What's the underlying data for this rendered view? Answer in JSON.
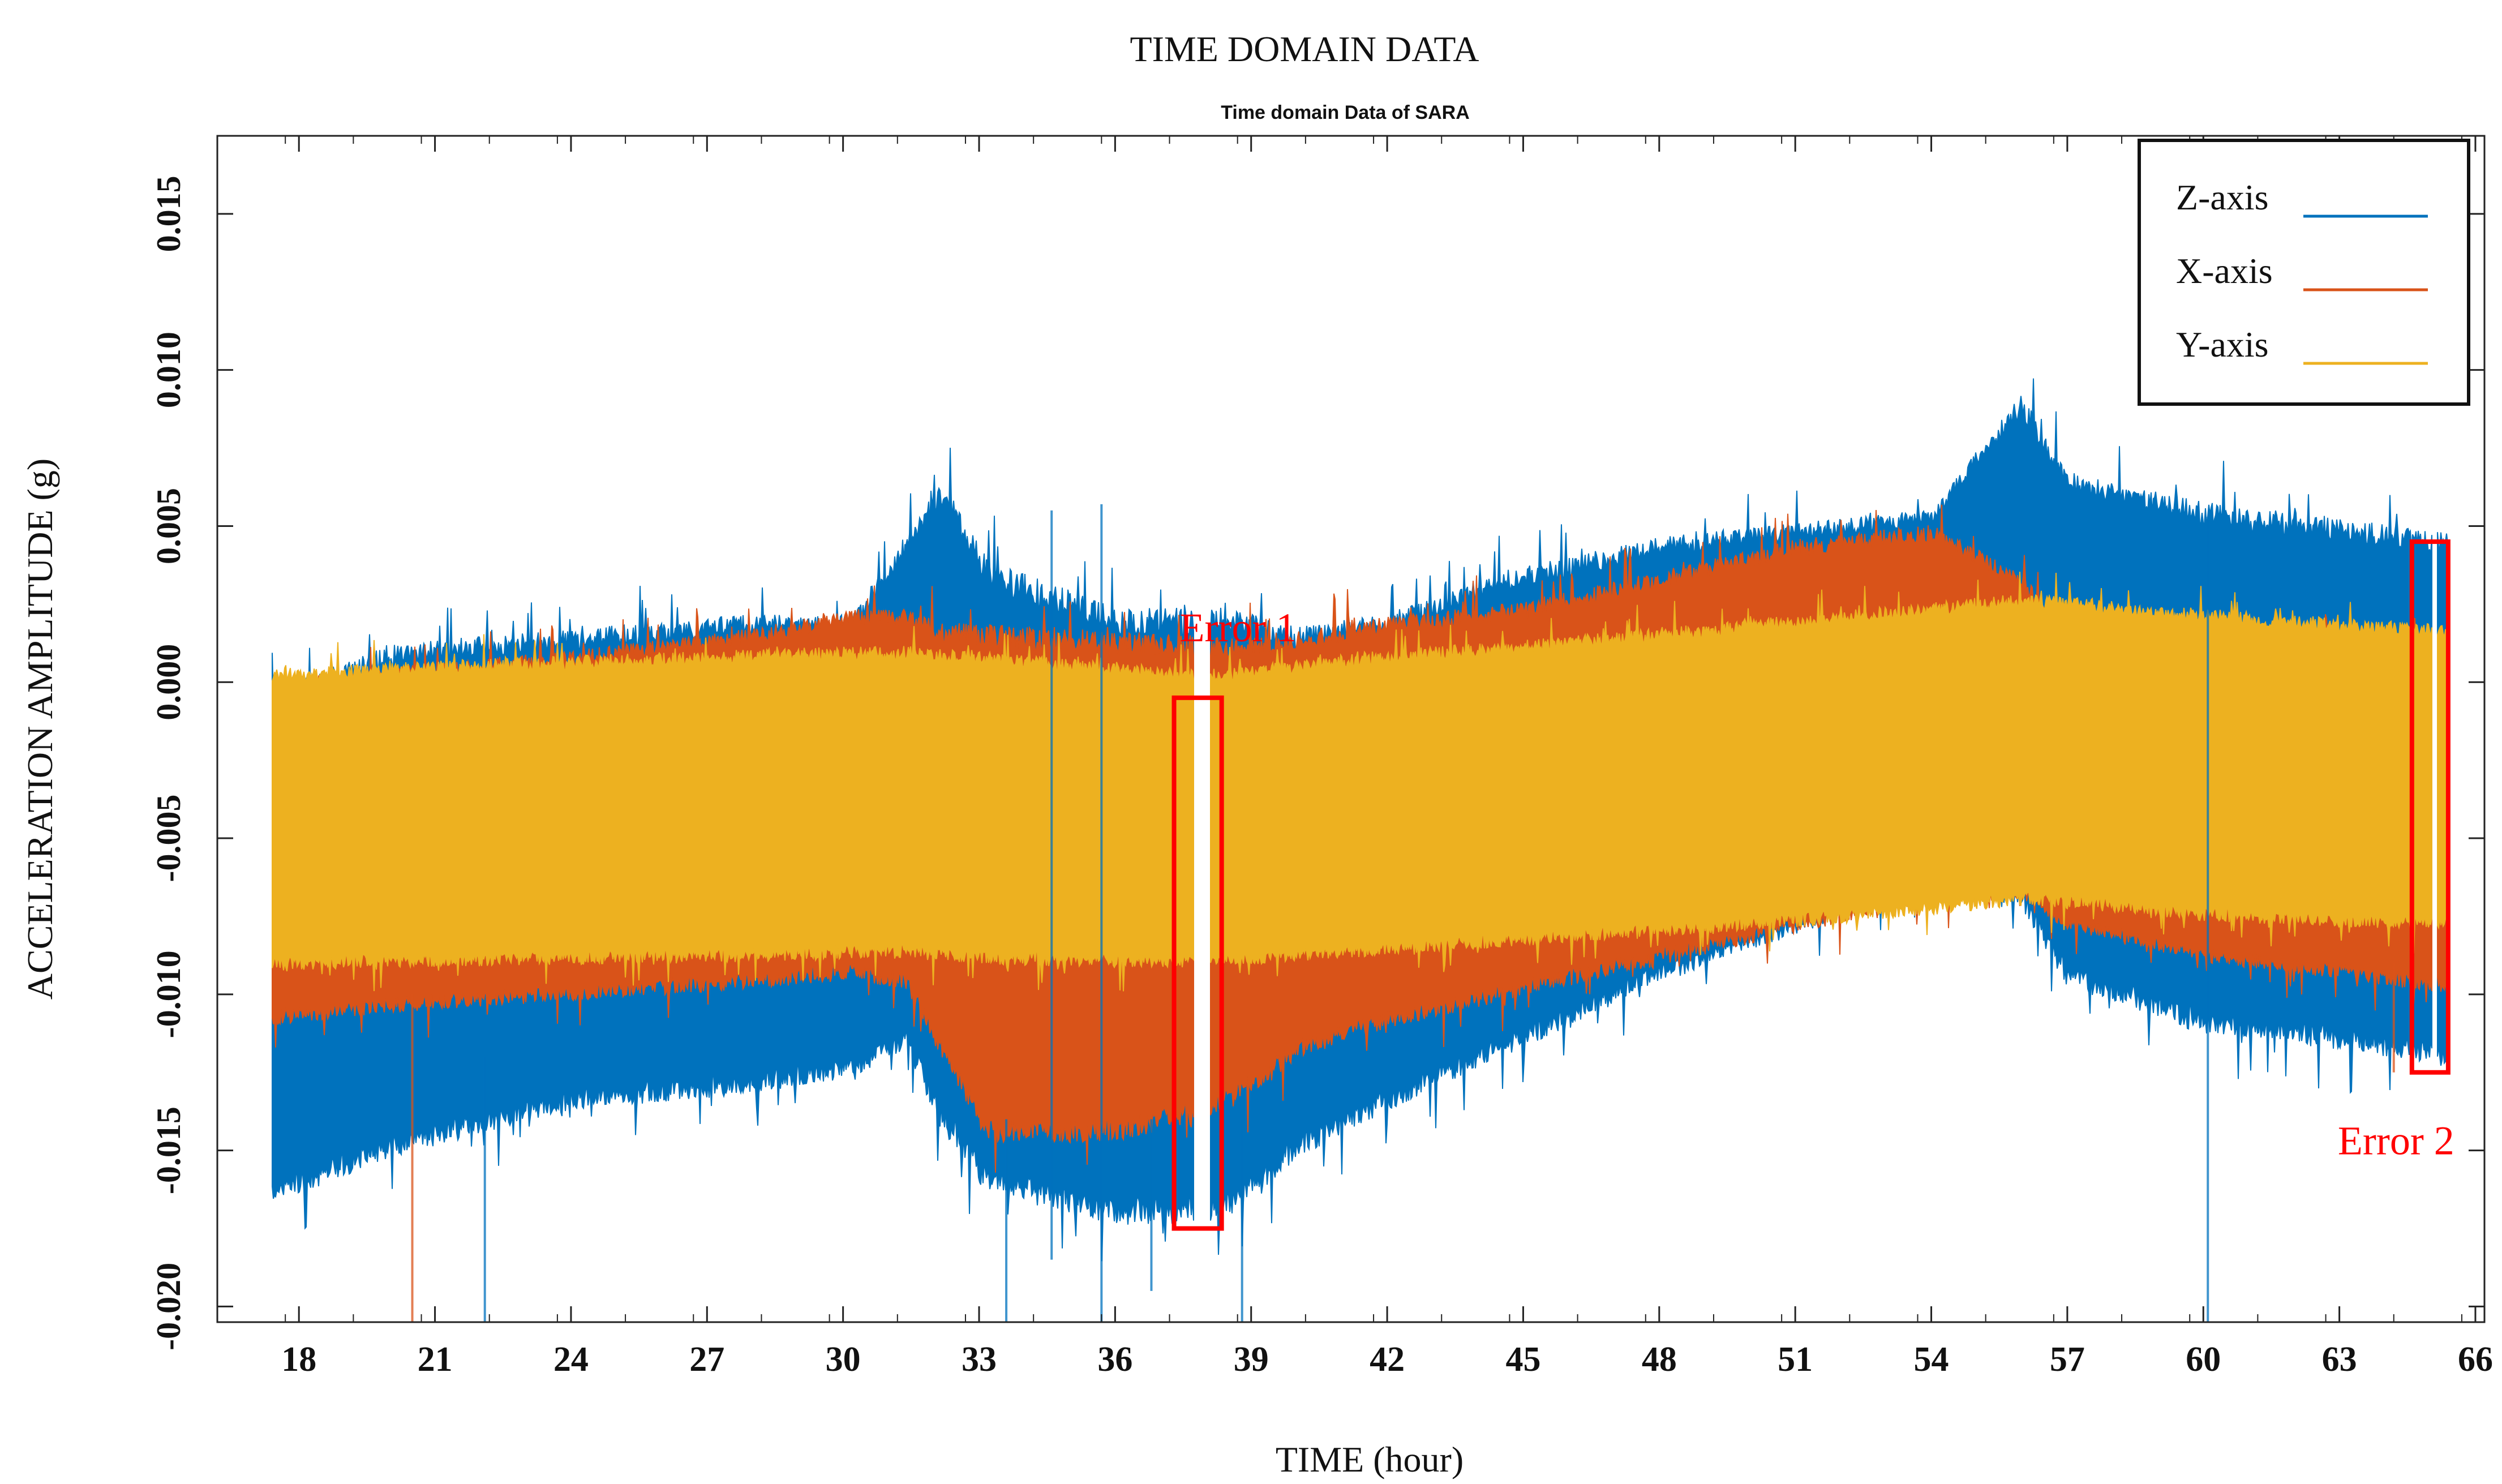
{
  "chart_data": {
    "type": "line",
    "figure_title": "TIME DOMAIN DATA",
    "title": "Time domain Data of SARA",
    "xlabel": "TIME (hour)",
    "ylabel": "ACCELERATION AMPLITUDE (g)",
    "xlim": [
      16.2,
      66.2
    ],
    "ylim": [
      -0.0205,
      0.0175
    ],
    "x_ticks": [
      18,
      21,
      24,
      27,
      30,
      33,
      36,
      39,
      42,
      45,
      48,
      51,
      54,
      57,
      60,
      63,
      66
    ],
    "x_tick_labels": [
      "18",
      "21",
      "24",
      "27",
      "30",
      "33",
      "36",
      "39",
      "42",
      "45",
      "48",
      "51",
      "54",
      "57",
      "60",
      "63",
      "66"
    ],
    "y_ticks": [
      -0.02,
      -0.015,
      -0.01,
      -0.005,
      0,
      0.005,
      0.01,
      0.015
    ],
    "y_tick_labels": [
      "-0.020",
      "-0.015",
      "-0.010",
      "-0.005",
      "0.000",
      "0.005",
      "0.010",
      "0.015"
    ],
    "legend_position": "top-right",
    "series": [
      {
        "name": "Z-axis",
        "color": "#0072BD",
        "x": [
          17.4,
          20,
          24,
          28,
          30.2,
          31.4,
          32.2,
          33.2,
          36,
          37.4,
          38.5,
          40,
          42,
          45,
          48,
          51,
          54,
          56,
          57,
          60,
          63,
          65.4
        ],
        "upper": [
          -0.001,
          0.0005,
          0.001,
          0.0015,
          0.0015,
          0.004,
          0.0055,
          0.003,
          0.0015,
          0.0015,
          0.0015,
          0.001,
          0.0015,
          0.003,
          0.004,
          0.0045,
          0.005,
          0.0085,
          0.006,
          0.005,
          0.0045,
          0.004
        ],
        "lower": [
          -0.016,
          -0.0145,
          -0.013,
          -0.0125,
          -0.012,
          -0.011,
          -0.0135,
          -0.0155,
          -0.0165,
          -0.0165,
          -0.0163,
          -0.0145,
          -0.013,
          -0.011,
          -0.009,
          -0.0075,
          -0.006,
          -0.0065,
          -0.009,
          -0.0105,
          -0.011,
          -0.0115
        ]
      },
      {
        "name": "X-axis",
        "color": "#D95319",
        "x": [
          17.4,
          20,
          24,
          28,
          30.2,
          31.4,
          32.2,
          33.2,
          36,
          37.4,
          38.5,
          40,
          42,
          45,
          48,
          51,
          54,
          56,
          57,
          60,
          63,
          65.4
        ],
        "upper": [
          -0.0005,
          0,
          0.0005,
          0.0012,
          0.0018,
          0.0018,
          0.0013,
          0.0011,
          0.0009,
          0.0008,
          0.0008,
          0.001,
          0.0015,
          0.002,
          0.003,
          0.004,
          0.0045,
          0.003,
          0.0012,
          0.001,
          0.001,
          0.001
        ],
        "lower": [
          -0.0105,
          -0.0101,
          -0.0097,
          -0.0093,
          -0.009,
          -0.0093,
          -0.0115,
          -0.014,
          -0.014,
          -0.0135,
          -0.013,
          -0.0115,
          -0.0105,
          -0.0095,
          -0.0085,
          -0.0075,
          -0.0065,
          -0.0065,
          -0.0075,
          -0.0085,
          -0.009,
          -0.0095
        ]
      },
      {
        "name": "Y-axis",
        "color": "#EDB120",
        "x": [
          17.4,
          20,
          24,
          28,
          30.2,
          31.4,
          32.2,
          33.2,
          36,
          37.4,
          38.5,
          40,
          42,
          45,
          48,
          51,
          54,
          56,
          57,
          60,
          63,
          65.4
        ],
        "upper": [
          0,
          0.0002,
          0.0004,
          0.0006,
          0.0007,
          0.0007,
          0.0006,
          0.0005,
          0.0002,
          0,
          0,
          0.0003,
          0.0006,
          0.0009,
          0.0013,
          0.0017,
          0.0021,
          0.0024,
          0.0023,
          0.0019,
          0.0016,
          0.0014
        ],
        "lower": [
          -0.0088,
          -0.0087,
          -0.0086,
          -0.0085,
          -0.0084,
          -0.0084,
          -0.0085,
          -0.0086,
          -0.0087,
          -0.0087,
          -0.0087,
          -0.0085,
          -0.0083,
          -0.008,
          -0.0077,
          -0.0074,
          -0.007,
          -0.0067,
          -0.0068,
          -0.0072,
          -0.0074,
          -0.0075
        ]
      }
    ],
    "spikes": [
      {
        "series": "X-axis",
        "x": 20.5,
        "y0": -0.01,
        "y1": -0.0205
      },
      {
        "series": "Z-axis",
        "x": 22.1,
        "y0": -0.012,
        "y1": -0.0205
      },
      {
        "series": "Z-axis",
        "x": 33.6,
        "y0": -0.014,
        "y1": -0.0205
      },
      {
        "series": "Z-axis",
        "x": 34.6,
        "y0": 0.0055,
        "y1": -0.0185
      },
      {
        "series": "Z-axis",
        "x": 35.7,
        "y0": 0.0057,
        "y1": -0.0205
      },
      {
        "series": "Z-axis",
        "x": 36.8,
        "y0": -0.014,
        "y1": -0.0195
      },
      {
        "series": "Z-axis",
        "x": 38.8,
        "y0": -0.014,
        "y1": -0.0205
      },
      {
        "series": "Z-axis",
        "x": 60.1,
        "y0": 0.0053,
        "y1": -0.0205
      },
      {
        "series": "X-axis",
        "x": 64.2,
        "y0": -0.009,
        "y1": -0.0125
      }
    ],
    "gaps": [
      {
        "x": [
          37.75,
          38.1
        ]
      },
      {
        "x": [
          65.05,
          65.15
        ]
      }
    ],
    "annotations": [
      {
        "label": "Error 1",
        "box_x": [
          37.3,
          38.35
        ],
        "box_y": [
          -0.0005,
          -0.0175
        ],
        "color": "#FF0000"
      },
      {
        "label": "Error 2",
        "box_x": [
          64.6,
          65.4
        ],
        "box_y": [
          0.0045,
          -0.0125
        ],
        "color": "#FF0000"
      }
    ]
  }
}
